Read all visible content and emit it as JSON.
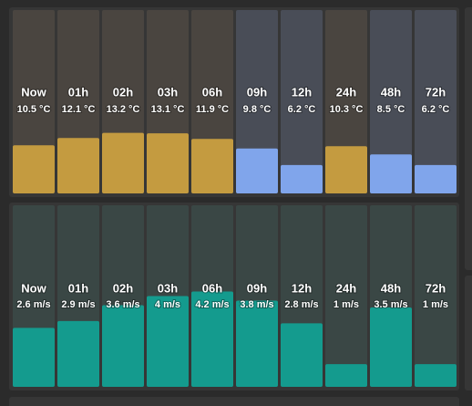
{
  "chart_data": [
    {
      "type": "bar",
      "categories": [
        "Now",
        "01h",
        "02h",
        "03h",
        "06h",
        "09h",
        "12h",
        "24h",
        "48h",
        "72h"
      ],
      "values": [
        10.5,
        12.1,
        13.2,
        13.1,
        11.9,
        9.8,
        6.2,
        10.3,
        8.5,
        6.2
      ],
      "value_labels": [
        "10.5 °C",
        "12.1 °C",
        "13.2 °C",
        "13.1 °C",
        "11.9 °C",
        "9.8 °C",
        "6.2 °C",
        "10.3 °C",
        "8.5 °C",
        "6.2 °C"
      ],
      "colors": [
        "#c49b40",
        "#c49b40",
        "#c49b40",
        "#c49b40",
        "#c49b40",
        "#80a5eb",
        "#80a5eb",
        "#c49b40",
        "#80a5eb",
        "#80a5eb"
      ],
      "backgrounds": [
        "#4a4540",
        "#4a4540",
        "#4a4540",
        "#4a4540",
        "#4a4540",
        "#494d57",
        "#494d57",
        "#4a4540",
        "#494d57",
        "#494d57"
      ],
      "ylim": [
        0,
        40
      ]
    },
    {
      "type": "bar",
      "categories": [
        "Now",
        "01h",
        "02h",
        "03h",
        "06h",
        "09h",
        "12h",
        "24h",
        "48h",
        "72h"
      ],
      "values": [
        2.6,
        2.9,
        3.6,
        4,
        4.2,
        3.8,
        2.8,
        1,
        3.5,
        1
      ],
      "value_labels": [
        "2.6 m/s",
        "2.9 m/s",
        "3.6 m/s",
        "4 m/s",
        "4.2 m/s",
        "3.8 m/s",
        "2.8 m/s",
        "1 m/s",
        "3.5 m/s",
        "1 m/s"
      ],
      "color": "#149b8e",
      "background": "#3a4745",
      "ylim": [
        0,
        8
      ]
    }
  ]
}
